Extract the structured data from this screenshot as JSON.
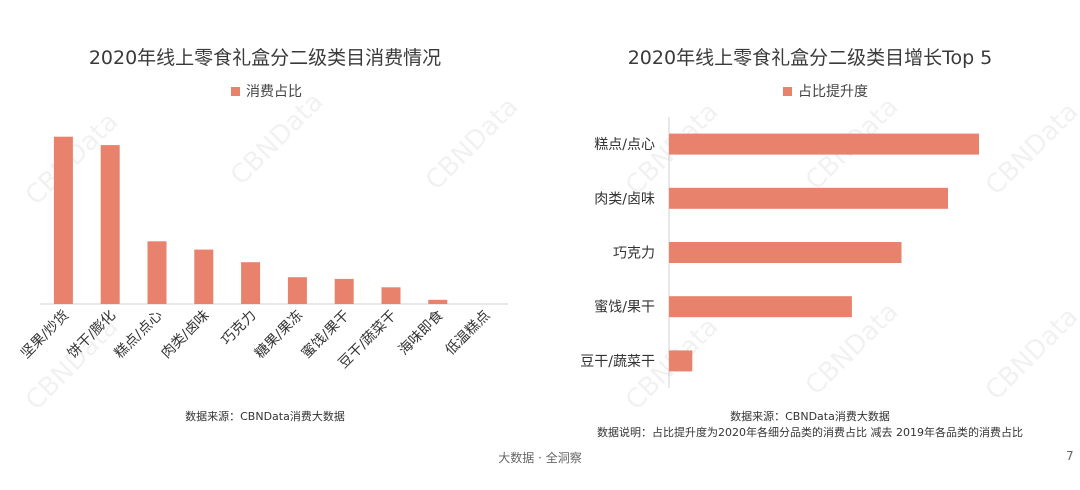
{
  "chart_data": [
    {
      "type": "bar",
      "title": "2020年线上零食礼盒分二级类目消费情况",
      "series": [
        {
          "name": "消费占比",
          "values": [
            20,
            19,
            7.5,
            6.5,
            5,
            3.2,
            3.0,
            2.0,
            0.5,
            0
          ]
        }
      ],
      "categories": [
        "坚果/炒货",
        "饼干/膨化",
        "糕点/点心",
        "肉类/卤味",
        "巧克力",
        "糖果/果冻",
        "蜜饯/果干",
        "豆干/蔬菜干",
        "海味即食",
        "低温糕点"
      ],
      "color": "#e8826d",
      "ylim": [
        0,
        22
      ],
      "grid": false,
      "legend_position": "top",
      "source": "数据来源：CBNData消费大数据"
    },
    {
      "type": "bar",
      "orientation": "horizontal",
      "title": "2020年线上零食礼盒分二级类目增长Top 5",
      "series": [
        {
          "name": "占比提升度",
          "values": [
            100,
            90,
            75,
            59,
            7.5
          ]
        }
      ],
      "categories": [
        "糕点/点心",
        "肉类/卤味",
        "巧克力",
        "蜜饯/果干",
        "豆干/蔬菜干"
      ],
      "color": "#e8826d",
      "xlim": [
        0,
        110
      ],
      "grid": false,
      "legend_position": "top",
      "source": "数据来源：CBNData消费大数据",
      "explanation": "数据说明：占比提升度为2020年各细分品类的消费占比 减去 2019年各品类的消费占比"
    }
  ],
  "footer": {
    "brand": "大数据 · 全洞察",
    "page": "7"
  },
  "watermark": "CBNData"
}
